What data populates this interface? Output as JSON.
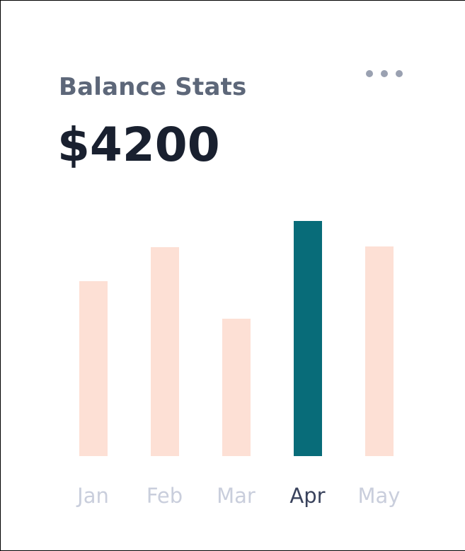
{
  "card": {
    "title": "Balance Stats",
    "balance": "$4200",
    "menu_icon": "ellipsis-icon"
  },
  "chart_data": {
    "type": "bar",
    "title": "Balance Stats",
    "categories": [
      "Jan",
      "Feb",
      "Mar",
      "Apr",
      "May"
    ],
    "values": [
      3120,
      3730,
      2450,
      4200,
      3740
    ],
    "selected_index": 3,
    "selected_category": "Apr",
    "selected_value_label": "$4200",
    "xlabel": "",
    "ylabel": "",
    "ylim": [
      0,
      4200
    ],
    "grid": false,
    "legend": false,
    "axis_labels_shown": "x-only"
  },
  "colors": {
    "background": "#FFFFFF",
    "edge_border": "#000000",
    "title": "#5D6779",
    "balance": "#19202F",
    "menu_dots": "#9AA1B1",
    "bar_default": "#FDE0D5",
    "bar_selected": "#086C79",
    "label_default": "#C9CEDC",
    "label_selected": "#39425C"
  }
}
